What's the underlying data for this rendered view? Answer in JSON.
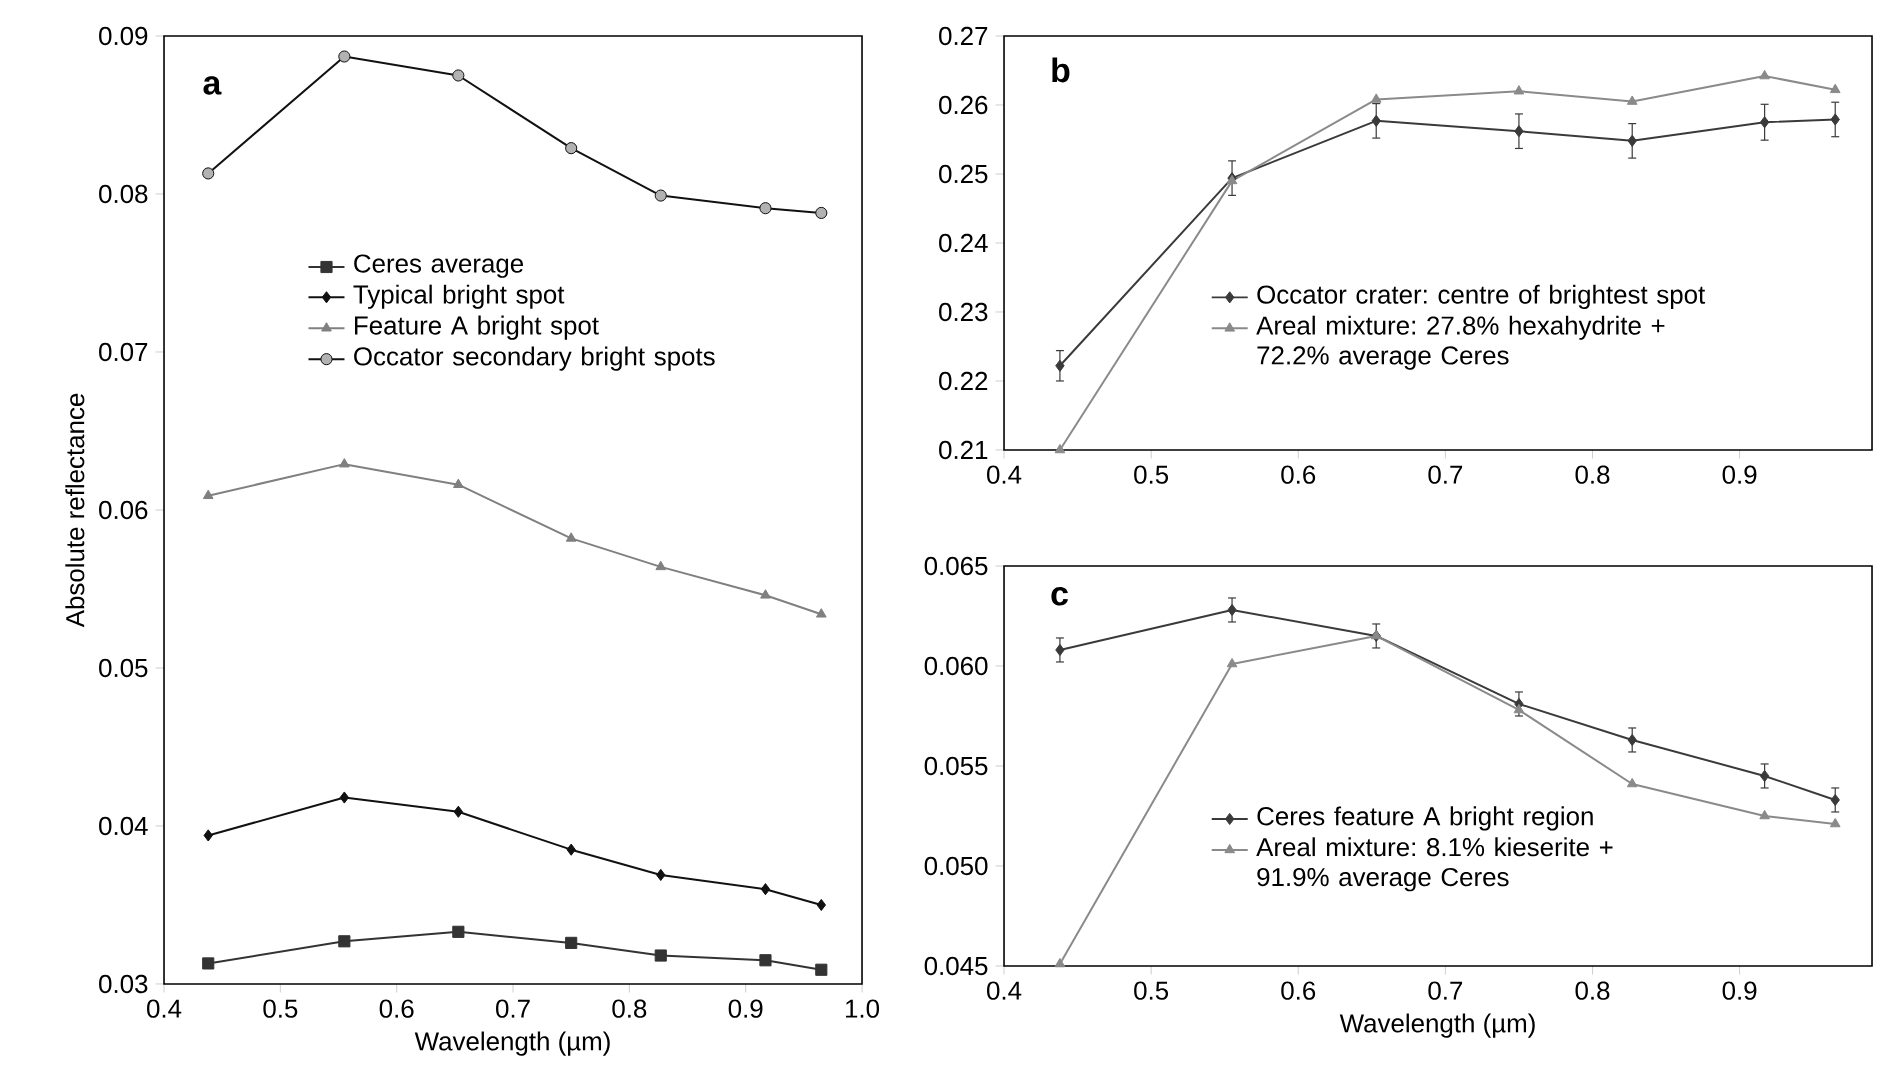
{
  "chart_data": [
    {
      "type": "line",
      "xlabel": "Wavelength (µm)",
      "ylabel": "Absolute reflectance",
      "annotations": [
        "a"
      ],
      "legend": "center",
      "line_style": "solid",
      "x": [
        0.438,
        0.555,
        0.653,
        0.75,
        0.827,
        0.917,
        0.965
      ],
      "xlim": [
        0.4,
        1.0
      ],
      "xticks": [
        0.4,
        0.5,
        0.6,
        0.7,
        0.8,
        0.9,
        {
          "value": 1.0,
          "label": "1.0"
        }
      ],
      "ylim": [
        0.03,
        0.09
      ],
      "yticks": [
        0.03,
        0.04,
        0.05,
        0.06,
        0.07,
        0.08,
        0.09
      ],
      "series": [
        {
          "name": "Ceres average",
          "color": "#333333",
          "marker": "square",
          "values": [
            0.0313,
            0.0327,
            0.0333,
            0.0326,
            0.0318,
            0.0315,
            0.0309
          ]
        },
        {
          "name": "Typical bright spot",
          "color": "#111111",
          "marker": "diamond",
          "values": [
            0.0394,
            0.0418,
            0.0409,
            0.0385,
            0.0369,
            0.036,
            0.035
          ]
        },
        {
          "name": "Feature A bright spot",
          "color": "#808080",
          "marker": "triangle",
          "values": [
            0.0609,
            0.0629,
            0.0616,
            0.0582,
            0.0564,
            0.0546,
            0.0534
          ]
        },
        {
          "name": "Occator secondary bright spots",
          "color": "#111111",
          "marker": "circle",
          "values": [
            0.0813,
            0.0887,
            0.0875,
            0.0829,
            0.0799,
            0.0791,
            0.0788
          ]
        }
      ]
    },
    {
      "type": "line",
      "annotations": [
        "b"
      ],
      "legend": "bottom right",
      "line_style": "solid",
      "x": [
        0.438,
        0.555,
        0.653,
        0.75,
        0.827,
        0.917,
        0.965
      ],
      "xlim": [
        0.4,
        0.99
      ],
      "xticks": [
        0.4,
        0.5,
        0.6,
        0.7,
        0.8,
        0.9
      ],
      "ylim": [
        0.21,
        0.27
      ],
      "yticks": [
        0.21,
        0.22,
        0.23,
        0.24,
        0.25,
        0.26,
        0.27
      ],
      "series": [
        {
          "name": "Occator crater: centre of brightest spot",
          "color": "#3a3a3a",
          "marker": "diamond",
          "values": [
            0.2222,
            0.2494,
            0.2577,
            0.2562,
            0.2548,
            0.2575,
            0.2579
          ],
          "errors": [
            0.0022,
            0.0025,
            0.0025,
            0.0025,
            0.0025,
            0.0026,
            0.0025
          ]
        },
        {
          "name": "Areal mixture: 27.8% hexahydrite + 72.2% average Ceres",
          "color": "#8a8a8a",
          "marker": "triangle",
          "values": [
            0.21,
            0.249,
            0.2608,
            0.262,
            0.2605,
            0.2642,
            0.2622
          ]
        }
      ]
    },
    {
      "type": "line",
      "xlabel": "Wavelength (µm)",
      "annotations": [
        "c"
      ],
      "legend": "bottom right",
      "line_style": "solid",
      "x": [
        0.438,
        0.555,
        0.653,
        0.75,
        0.827,
        0.917,
        0.965
      ],
      "xlim": [
        0.4,
        0.99
      ],
      "xticks": [
        0.4,
        0.5,
        0.6,
        0.7,
        0.8,
        0.9
      ],
      "ylim": [
        0.045,
        0.065
      ],
      "yticks": [
        0.045,
        {
          "value": 0.05,
          "label": "0.050"
        },
        0.055,
        {
          "value": 0.06,
          "label": "0.060"
        },
        0.065
      ],
      "series": [
        {
          "name": "Ceres feature A bright region",
          "color": "#3a3a3a",
          "marker": "diamond",
          "values": [
            0.0608,
            0.0628,
            0.0615,
            0.0581,
            0.0563,
            0.0545,
            0.0533
          ],
          "errors": [
            0.0006,
            0.0006,
            0.0006,
            0.0006,
            0.0006,
            0.0006,
            0.0006
          ]
        },
        {
          "name": "Areal mixture: 8.1% kieserite + 91.9% average Ceres",
          "color": "#8a8a8a",
          "marker": "triangle",
          "values": [
            0.0451,
            0.0601,
            0.0615,
            0.0578,
            0.0541,
            0.0525,
            0.0521
          ]
        }
      ]
    }
  ]
}
